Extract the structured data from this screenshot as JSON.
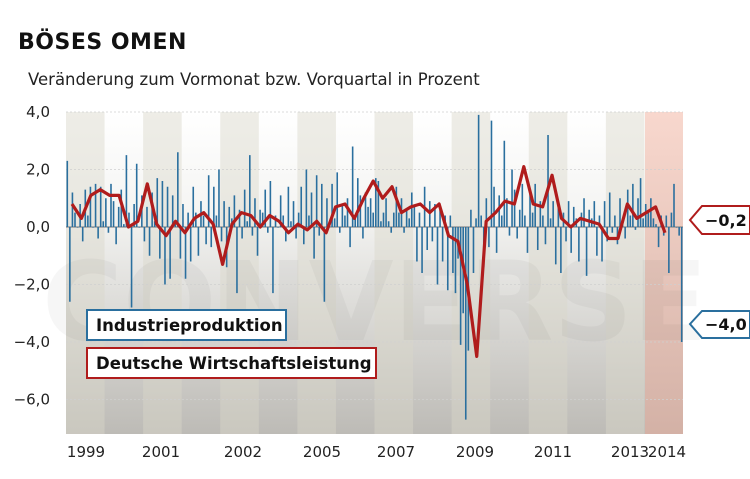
{
  "chart_data": {
    "type": "bar+line",
    "title": "BÖSES OMEN",
    "subtitle": "Veränderung zum Vormonat bzw. Vorquartal in Prozent",
    "ylim": [
      -7.2,
      4.0
    ],
    "y_ticks": [
      {
        "value": 4.0,
        "label": "4,0"
      },
      {
        "value": 2.0,
        "label": "2,0"
      },
      {
        "value": 0.0,
        "label": "0,0"
      },
      {
        "value": -2.0,
        "label": "−2,0"
      },
      {
        "value": -4.0,
        "label": "−4,0"
      },
      {
        "value": -6.0,
        "label": "−6,0"
      }
    ],
    "x_ticks": [
      "1999",
      "2001",
      "2002",
      "2005",
      "2007",
      "2009",
      "2011",
      "2013",
      "2014"
    ],
    "legend": [
      {
        "name": "Industrieproduktion",
        "color": "#2a6f9e"
      },
      {
        "name": "Deutsche Wirtschaftsleistung",
        "color": "#b01c1c"
      }
    ],
    "series": [
      {
        "name": "Industrieproduktion",
        "type": "bar",
        "color": "#2a6f9e",
        "values": [
          2.3,
          -2.6,
          1.2,
          0.5,
          0.0,
          0.8,
          -0.5,
          1.3,
          0.4,
          1.4,
          0.0,
          1.5,
          -0.4,
          1.4,
          0.2,
          1.0,
          -0.2,
          1.5,
          0.9,
          -0.6,
          0.7,
          1.3,
          0.1,
          2.5,
          0.5,
          -2.8,
          0.8,
          2.2,
          0.0,
          1.1,
          -0.5,
          0.7,
          -1.0,
          1.2,
          0.2,
          1.7,
          -1.1,
          1.6,
          -2.0,
          1.4,
          -1.8,
          1.1,
          0.2,
          2.6,
          -1.1,
          0.8,
          -1.8,
          0.5,
          -1.2,
          1.4,
          0.5,
          -1.0,
          0.9,
          0.4,
          -0.6,
          1.8,
          -0.7,
          1.4,
          0.4,
          2.0,
          -0.5,
          0.9,
          -1.4,
          0.7,
          0.3,
          1.1,
          -2.3,
          0.6,
          -0.4,
          1.3,
          0.2,
          2.5,
          -0.3,
          1.0,
          -1.0,
          0.6,
          0.5,
          1.3,
          -0.2,
          1.6,
          -2.3,
          0.4,
          0.0,
          1.1,
          0.4,
          -0.5,
          1.4,
          0.2,
          0.9,
          -0.4,
          0.5,
          1.4,
          -0.6,
          2.0,
          0.4,
          1.2,
          -1.1,
          1.8,
          -0.3,
          1.5,
          -2.6,
          1.0,
          0.1,
          1.5,
          0.3,
          1.9,
          -0.2,
          0.8,
          0.4,
          1.0,
          -0.7,
          2.8,
          0.3,
          1.7,
          1.1,
          -0.4,
          1.2,
          0.7,
          1.0,
          0.5,
          1.7,
          1.6,
          0.2,
          0.5,
          1.0,
          0.2,
          -0.2,
          0.5,
          1.4,
          0.5,
          1.0,
          -0.2,
          0.6,
          0.3,
          1.2,
          0.7,
          -1.2,
          0.5,
          -1.6,
          1.4,
          -0.8,
          0.9,
          -0.5,
          0.8,
          -2.0,
          0.6,
          -1.2,
          0.4,
          -2.2,
          0.4,
          -1.6,
          -2.3,
          -1.1,
          -4.1,
          -3.0,
          -6.7,
          -4.3,
          0.6,
          -1.6,
          0.3,
          3.9,
          0.4,
          -1.4,
          1.0,
          -0.7,
          3.7,
          1.4,
          -0.9,
          1.1,
          0.4,
          3.0,
          1.0,
          -0.3,
          2.0,
          1.3,
          -0.4,
          0.6,
          1.5,
          0.4,
          -0.9,
          1.2,
          0.5,
          1.5,
          -0.8,
          0.9,
          0.4,
          -0.6,
          3.2,
          0.3,
          0.9,
          -1.3,
          0.8,
          -1.6,
          0.5,
          -0.5,
          0.9,
          -0.9,
          0.7,
          0.3,
          -1.2,
          0.5,
          1.0,
          -1.7,
          0.6,
          0.3,
          0.9,
          -1.0,
          0.4,
          -1.2,
          0.9,
          -0.5,
          1.2,
          -0.2,
          0.4,
          -0.6,
          1.0,
          0.2,
          -0.4,
          1.3,
          0.4,
          1.5,
          -0.1,
          1.0,
          1.7,
          0.3,
          0.8,
          0.5,
          1.0,
          0.3,
          0.1,
          -0.7,
          0.4,
          -0.3,
          0.4,
          -1.6,
          0.5,
          1.5,
          0.0,
          -0.3,
          -4.0
        ]
      },
      {
        "name": "Deutsche Wirtschaftsleistung",
        "type": "line",
        "color": "#b01c1c",
        "values": [
          0.8,
          0.3,
          1.1,
          1.3,
          1.1,
          1.1,
          0.0,
          0.2,
          1.5,
          0.1,
          -0.3,
          0.2,
          -0.2,
          0.3,
          0.5,
          0.1,
          -1.3,
          0.1,
          0.5,
          0.4,
          0.0,
          0.4,
          0.2,
          -0.2,
          0.1,
          -0.1,
          0.2,
          -0.2,
          0.7,
          0.8,
          0.3,
          1.0,
          1.6,
          1.0,
          1.4,
          0.5,
          0.7,
          0.8,
          0.5,
          0.8,
          -0.3,
          -0.5,
          -2.0,
          -4.5,
          0.2,
          0.5,
          0.9,
          0.8,
          2.1,
          0.8,
          0.7,
          1.8,
          0.3,
          0.0,
          0.3,
          0.2,
          0.1,
          -0.4,
          -0.4,
          0.8,
          0.3,
          0.5,
          0.7,
          -0.2
        ]
      }
    ],
    "annotations": [
      {
        "label": "−0,2",
        "value": -0.2,
        "series": "Deutsche Wirtschaftsleistung"
      },
      {
        "label": "−4,0",
        "value": -4.0,
        "series": "Industrieproduktion"
      }
    ],
    "watermark": "CONVERSE"
  }
}
